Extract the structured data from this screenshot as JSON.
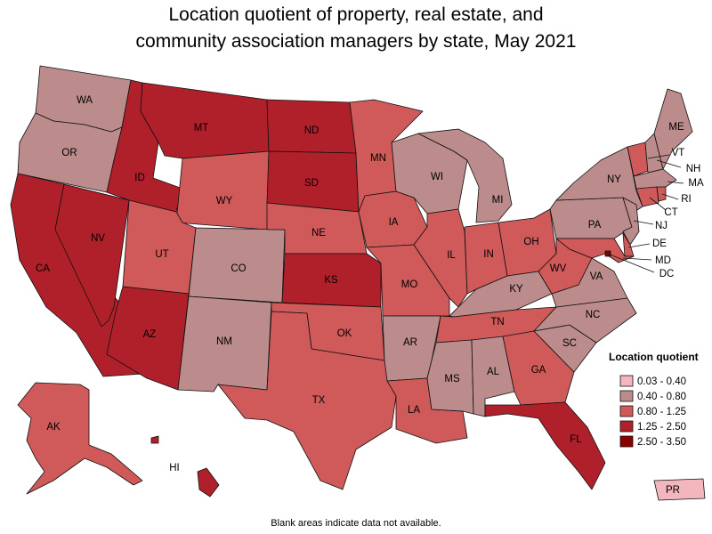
{
  "title_line1": "Location quotient of property, real estate, and",
  "title_line2": "community association managers by state, May 2021",
  "footnote": "Blank areas indicate data not available.",
  "legend": {
    "title": "Location quotient",
    "bins": [
      {
        "label": "0.03 - 0.40",
        "color": "#f4b6bd"
      },
      {
        "label": "0.40 - 0.80",
        "color": "#bc8b8b"
      },
      {
        "label": "0.80 - 1.25",
        "color": "#d05a5a"
      },
      {
        "label": "1.25 - 2.50",
        "color": "#b0202a"
      },
      {
        "label": "2.50 - 3.50",
        "color": "#8b0000"
      }
    ]
  },
  "states": [
    {
      "abbr": "WA",
      "bin": 1
    },
    {
      "abbr": "OR",
      "bin": 1
    },
    {
      "abbr": "CA",
      "bin": 3
    },
    {
      "abbr": "NV",
      "bin": 3
    },
    {
      "abbr": "ID",
      "bin": 3
    },
    {
      "abbr": "MT",
      "bin": 3
    },
    {
      "abbr": "WY",
      "bin": 2
    },
    {
      "abbr": "UT",
      "bin": 2
    },
    {
      "abbr": "AZ",
      "bin": 3
    },
    {
      "abbr": "CO",
      "bin": 1
    },
    {
      "abbr": "NM",
      "bin": 1
    },
    {
      "abbr": "ND",
      "bin": 3
    },
    {
      "abbr": "SD",
      "bin": 3
    },
    {
      "abbr": "NE",
      "bin": 2
    },
    {
      "abbr": "KS",
      "bin": 3
    },
    {
      "abbr": "OK",
      "bin": 2
    },
    {
      "abbr": "TX",
      "bin": 2
    },
    {
      "abbr": "MN",
      "bin": 2
    },
    {
      "abbr": "IA",
      "bin": 2
    },
    {
      "abbr": "MO",
      "bin": 2
    },
    {
      "abbr": "AR",
      "bin": 1
    },
    {
      "abbr": "LA",
      "bin": 2
    },
    {
      "abbr": "WI",
      "bin": 1
    },
    {
      "abbr": "IL",
      "bin": 2
    },
    {
      "abbr": "MI",
      "bin": 1
    },
    {
      "abbr": "IN",
      "bin": 2
    },
    {
      "abbr": "OH",
      "bin": 2
    },
    {
      "abbr": "KY",
      "bin": 1
    },
    {
      "abbr": "TN",
      "bin": 2
    },
    {
      "abbr": "MS",
      "bin": 1
    },
    {
      "abbr": "AL",
      "bin": 1
    },
    {
      "abbr": "GA",
      "bin": 2
    },
    {
      "abbr": "FL",
      "bin": 3
    },
    {
      "abbr": "SC",
      "bin": 1
    },
    {
      "abbr": "NC",
      "bin": 1
    },
    {
      "abbr": "VA",
      "bin": 1
    },
    {
      "abbr": "WV",
      "bin": 2
    },
    {
      "abbr": "PA",
      "bin": 1
    },
    {
      "abbr": "NY",
      "bin": 1
    },
    {
      "abbr": "VT",
      "bin": 2
    },
    {
      "abbr": "NH",
      "bin": 1
    },
    {
      "abbr": "ME",
      "bin": 1
    },
    {
      "abbr": "MA",
      "bin": 1
    },
    {
      "abbr": "CT",
      "bin": 2
    },
    {
      "abbr": "RI",
      "bin": 2
    },
    {
      "abbr": "NJ",
      "bin": 1
    },
    {
      "abbr": "DE",
      "bin": 2
    },
    {
      "abbr": "MD",
      "bin": 2
    },
    {
      "abbr": "DC",
      "bin": 4
    },
    {
      "abbr": "AK",
      "bin": 2
    },
    {
      "abbr": "HI",
      "bin": 3
    },
    {
      "abbr": "PR",
      "bin": 0
    }
  ]
}
